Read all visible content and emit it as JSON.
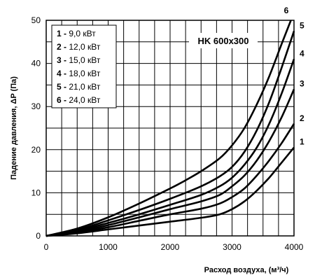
{
  "chart_data": {
    "type": "line",
    "title": "",
    "annotation": "HK 600x300",
    "xlabel": "Расход воздуха, (м³/ч)",
    "ylabel": "Падение давления, ΔP (Па)",
    "xlim": [
      0,
      4000
    ],
    "ylim": [
      0,
      50
    ],
    "x_ticks": [
      "0",
      "1000",
      "2000",
      "3000",
      "4000"
    ],
    "y_ticks": [
      "0",
      "10",
      "20",
      "30",
      "40",
      "50"
    ],
    "grid": true,
    "legend_position": "top-left",
    "series": [
      {
        "name": "9,0 кВт",
        "label": "1",
        "legend_num": "1 -",
        "legend_text": " 9,0 кВт",
        "x": [
          0,
          500,
          1000,
          1500,
          2000,
          2500,
          2800,
          3000,
          3200,
          3400,
          3600,
          3800,
          4000
        ],
        "y": [
          0,
          0.6,
          1.5,
          2.4,
          3.3,
          4.2,
          5.0,
          6.2,
          8.0,
          10.5,
          13.5,
          17.0,
          20.5
        ]
      },
      {
        "name": "12,0 кВт",
        "label": "2",
        "legend_num": "2 -",
        "legend_text": " 12,0 кВт",
        "x": [
          0,
          500,
          1000,
          1500,
          2000,
          2500,
          2800,
          3000,
          3200,
          3400,
          3600,
          3800,
          4000
        ],
        "y": [
          0,
          0.8,
          2.0,
          3.5,
          5.0,
          6.3,
          7.5,
          9.0,
          11.0,
          14.0,
          17.5,
          21.5,
          26.0
        ]
      },
      {
        "name": "15,0 кВт",
        "label": "3",
        "legend_num": "3 -",
        "legend_text": " 15,0 кВт",
        "x": [
          0,
          500,
          1000,
          1500,
          2000,
          2500,
          2800,
          3000,
          3200,
          3400,
          3600,
          3800,
          4000
        ],
        "y": [
          0,
          1.0,
          2.5,
          4.3,
          6.2,
          8.0,
          9.5,
          11.5,
          14.0,
          17.5,
          22.0,
          27.5,
          34.0
        ]
      },
      {
        "name": "18,0 кВт",
        "label": "4",
        "legend_num": "4 -",
        "legend_text": " 18,0 кВт",
        "x": [
          0,
          500,
          1000,
          1500,
          2000,
          2500,
          2800,
          3000,
          3200,
          3400,
          3600,
          3800,
          4000
        ],
        "y": [
          0,
          1.2,
          3.0,
          5.0,
          7.2,
          9.5,
          11.5,
          13.5,
          16.5,
          20.5,
          26.0,
          33.0,
          41.0
        ]
      },
      {
        "name": "21,0 кВт",
        "label": "5",
        "legend_num": "5 -",
        "legend_text": " 21,0 кВт",
        "x": [
          0,
          500,
          1000,
          1500,
          2000,
          2500,
          2800,
          3000,
          3200,
          3400,
          3600,
          3800,
          4000
        ],
        "y": [
          0,
          1.4,
          3.6,
          6.0,
          8.6,
          11.5,
          13.8,
          16.0,
          19.5,
          24.5,
          31.0,
          39.0,
          47.5
        ]
      },
      {
        "name": "24,0 кВт",
        "label": "6",
        "legend_num": "6 -",
        "legend_text": " 24,0 кВт",
        "x": [
          0,
          500,
          1000,
          1500,
          2000,
          2200,
          2500,
          2800,
          3000,
          3200,
          3400,
          3600,
          3800,
          3950
        ],
        "y": [
          0,
          1.7,
          4.3,
          7.5,
          11.0,
          12.5,
          15.0,
          18.0,
          21.0,
          25.0,
          30.5,
          37.0,
          44.5,
          50.0
        ]
      }
    ]
  }
}
